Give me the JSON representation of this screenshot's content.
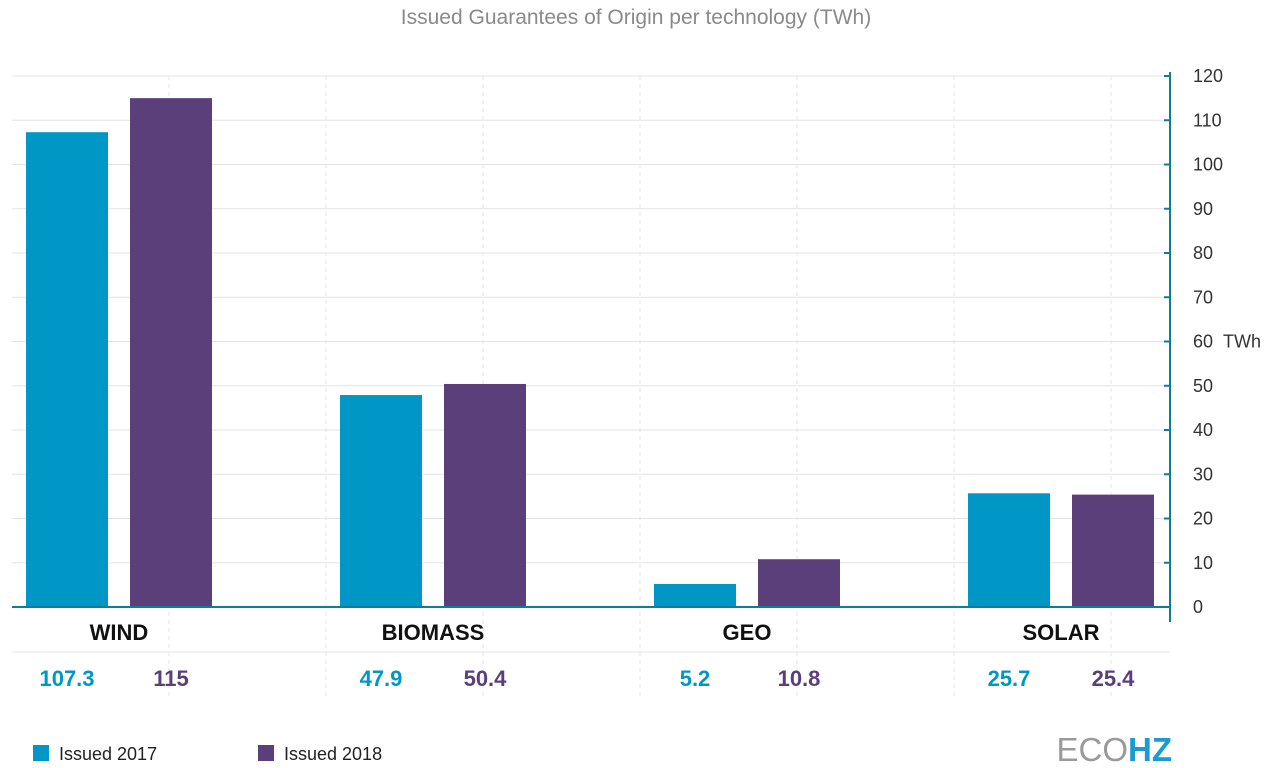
{
  "colors": {
    "series_2017": "#0097c7",
    "series_2018": "#5b3f7b",
    "axis": "#0e7d98",
    "grid": "#e4e4e4",
    "title": "#8a8a8a",
    "logo_hz": "#1b9bd1"
  },
  "logo": {
    "part1": "ECO",
    "part2": "HZ"
  },
  "chart_data": {
    "type": "bar",
    "title": "Issued Guarantees of Origin per technology (TWh)",
    "unit_label": "TWh",
    "categories": [
      "WIND",
      "BIOMASS",
      "GEO",
      "SOLAR"
    ],
    "series": [
      {
        "name": "Issued 2017",
        "values": [
          107.3,
          47.9,
          5.2,
          25.7
        ],
        "labels": [
          "107.3",
          "47.9",
          "5.2",
          "25.7"
        ]
      },
      {
        "name": "Issued 2018",
        "values": [
          115,
          50.4,
          10.8,
          25.4
        ],
        "labels": [
          "115",
          "50.4",
          "10.8",
          "25.4"
        ]
      }
    ],
    "ylim": [
      0,
      120
    ],
    "yticks": [
      0,
      10,
      20,
      30,
      40,
      50,
      60,
      70,
      80,
      90,
      100,
      110,
      120
    ],
    "grid": true,
    "y_axis_side": "right",
    "legend_position": "bottom-left"
  }
}
